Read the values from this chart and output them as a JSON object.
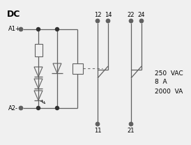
{
  "title": "DC",
  "background_color": "#f0f0f0",
  "line_color": "#606060",
  "dot_color": "#303030",
  "text_color": "#000000",
  "fig_width": 2.74,
  "fig_height": 2.08,
  "dpi": 100,
  "specs_text": [
    "250  VAC",
    "8  A",
    "2000  VA"
  ],
  "terminal_labels_top": [
    "12",
    "14",
    "22",
    "24"
  ],
  "terminal_labels_bottom": [
    "11",
    "21"
  ]
}
